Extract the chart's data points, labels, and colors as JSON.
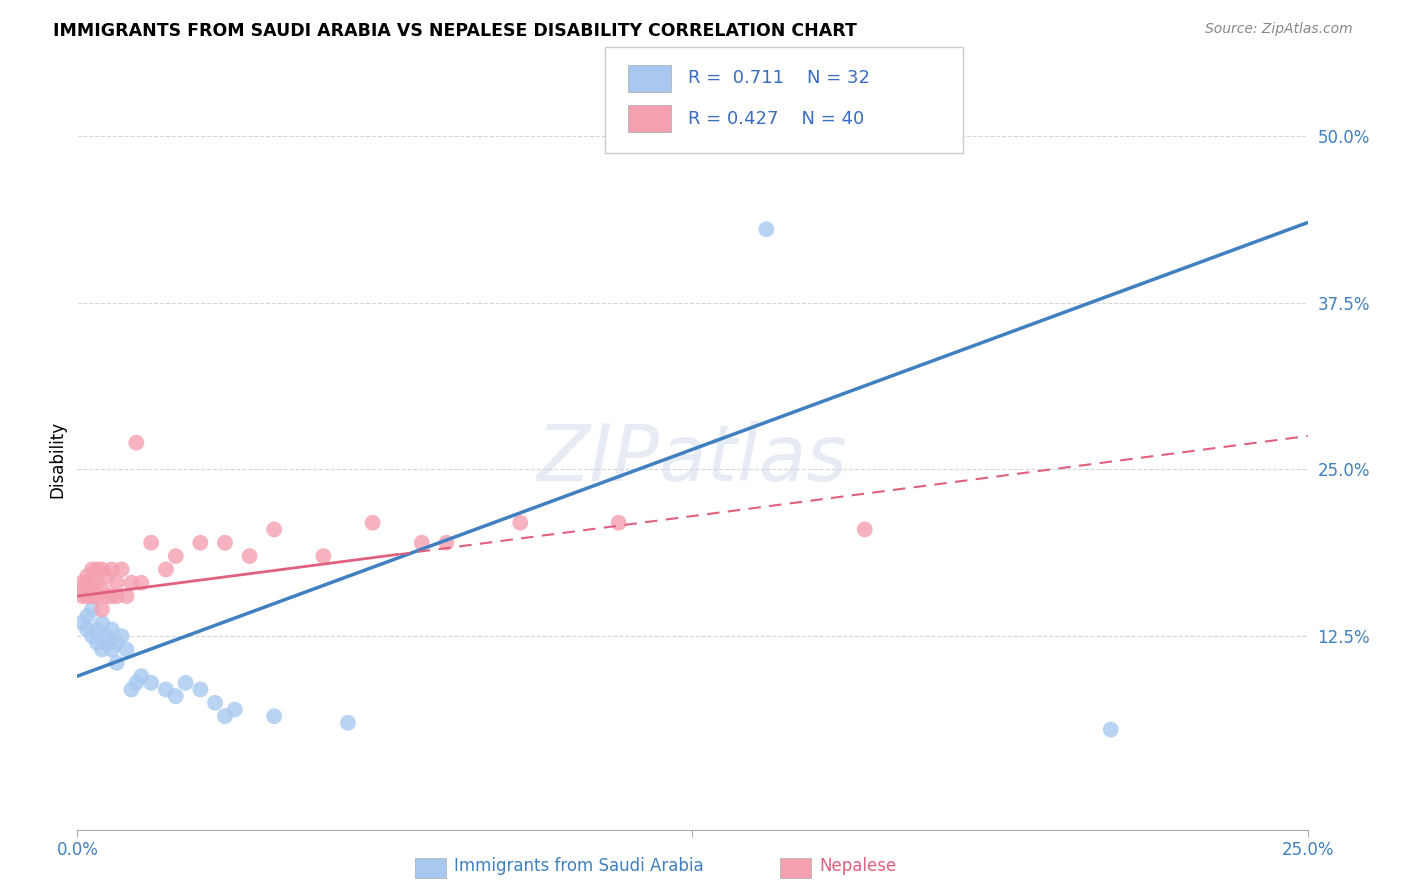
{
  "title": "IMMIGRANTS FROM SAUDI ARABIA VS NEPALESE DISABILITY CORRELATION CHART",
  "source": "Source: ZipAtlas.com",
  "xlabel_blue": "Immigrants from Saudi Arabia",
  "xlabel_pink": "Nepalese",
  "ylabel": "Disability",
  "r_blue": 0.711,
  "n_blue": 32,
  "r_pink": 0.427,
  "n_pink": 40,
  "xlim": [
    0.0,
    0.25
  ],
  "ylim": [
    -0.02,
    0.535
  ],
  "ytick_positions": [
    0.125,
    0.25,
    0.375,
    0.5
  ],
  "ytick_labels": [
    "12.5%",
    "25.0%",
    "37.5%",
    "50.0%"
  ],
  "color_blue": "#A8C8F0",
  "color_pink": "#F4A0B0",
  "line_color_blue": "#4080C0",
  "line_color_pink": "#E06080",
  "watermark": "ZIPatlas",
  "blue_line_x0": 0.0,
  "blue_line_y0": 0.095,
  "blue_line_x1": 0.25,
  "blue_line_y1": 0.435,
  "pink_line_x0": 0.0,
  "pink_line_y0": 0.155,
  "pink_line_x1": 0.25,
  "pink_line_y1": 0.275,
  "blue_scatter_x": [
    0.001,
    0.002,
    0.002,
    0.003,
    0.003,
    0.004,
    0.004,
    0.005,
    0.005,
    0.006,
    0.006,
    0.007,
    0.007,
    0.008,
    0.008,
    0.009,
    0.01,
    0.011,
    0.012,
    0.013,
    0.015,
    0.018,
    0.02,
    0.022,
    0.025,
    0.028,
    0.03,
    0.032,
    0.04,
    0.055,
    0.14,
    0.21
  ],
  "blue_scatter_y": [
    0.135,
    0.13,
    0.14,
    0.125,
    0.145,
    0.12,
    0.13,
    0.115,
    0.135,
    0.12,
    0.125,
    0.115,
    0.13,
    0.105,
    0.12,
    0.125,
    0.115,
    0.085,
    0.09,
    0.095,
    0.09,
    0.085,
    0.08,
    0.09,
    0.085,
    0.075,
    0.065,
    0.07,
    0.065,
    0.06,
    0.43,
    0.055
  ],
  "pink_scatter_x": [
    0.001,
    0.001,
    0.001,
    0.002,
    0.002,
    0.002,
    0.003,
    0.003,
    0.003,
    0.004,
    0.004,
    0.004,
    0.005,
    0.005,
    0.005,
    0.006,
    0.006,
    0.007,
    0.007,
    0.008,
    0.008,
    0.009,
    0.01,
    0.011,
    0.012,
    0.013,
    0.015,
    0.018,
    0.02,
    0.025,
    0.03,
    0.035,
    0.04,
    0.05,
    0.06,
    0.07,
    0.075,
    0.09,
    0.11,
    0.16
  ],
  "pink_scatter_y": [
    0.16,
    0.155,
    0.165,
    0.155,
    0.165,
    0.17,
    0.155,
    0.165,
    0.175,
    0.155,
    0.165,
    0.175,
    0.145,
    0.16,
    0.175,
    0.155,
    0.17,
    0.155,
    0.175,
    0.155,
    0.165,
    0.175,
    0.155,
    0.165,
    0.27,
    0.165,
    0.195,
    0.175,
    0.185,
    0.195,
    0.195,
    0.185,
    0.205,
    0.185,
    0.21,
    0.195,
    0.195,
    0.21,
    0.21,
    0.205
  ]
}
